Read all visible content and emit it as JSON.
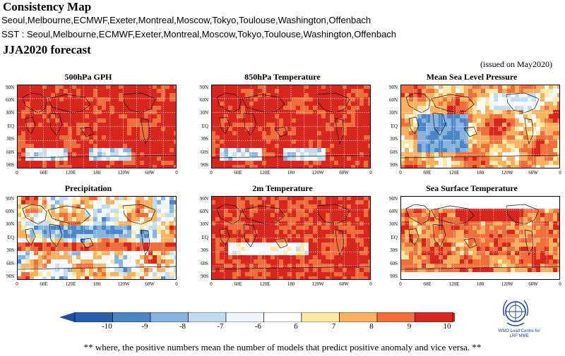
{
  "header": {
    "title": "Consistency Map",
    "models_line": "Seoul,Melbourne,ECMWF,Exeter,Montreal,Moscow,Tokyo,Toulouse,Washington,Offenbach",
    "sst_line": "SST : Seoul,Melbourne,ECMWF,Exeter,Montreal,Moscow,Tokyo,Toulouse,Washington,Offenbach",
    "forecast": "JJA2020 forecast",
    "issued": "(issued on May2020)"
  },
  "axes": {
    "lat_labels": [
      "90N",
      "60N",
      "30N",
      "EQ",
      "30S",
      "60S",
      "90S"
    ],
    "lon_labels": [
      "0",
      "60E",
      "120E",
      "180",
      "120W",
      "60W",
      "0"
    ]
  },
  "panels": [
    {
      "title": "500hPa GPH",
      "pattern": "gph"
    },
    {
      "title": "850hPa Temperature",
      "pattern": "t850"
    },
    {
      "title": "Mean Sea Level Pressure",
      "pattern": "mslp"
    },
    {
      "title": "Precipitation",
      "pattern": "precip"
    },
    {
      "title": "2m Temperature",
      "pattern": "t2m"
    },
    {
      "title": "Sea Surface Temperature",
      "pattern": "sst"
    }
  ],
  "colorbar": {
    "labels": [
      "-10",
      "-9",
      "-8",
      "-7",
      "-6",
      "6",
      "7",
      "8",
      "9",
      "10"
    ],
    "colors": [
      "#2a5fae",
      "#4d86c6",
      "#86b4de",
      "#c1dcf0",
      "#eef6fb",
      "#ffffff",
      "#fde9a6",
      "#f9b15f",
      "#ef6e3c",
      "#d7261d"
    ],
    "arrow_left_color": "#1f4f9c",
    "arrow_right_color": "#c41a17"
  },
  "logo": {
    "icon": "wmo-emblem-icon",
    "text_line1": "WMO Lead Centre for",
    "text_line2": "LRF MME"
  },
  "footnote": "** where, the positive numbers mean the number of models that predict positive anomaly and vice versa. **"
}
